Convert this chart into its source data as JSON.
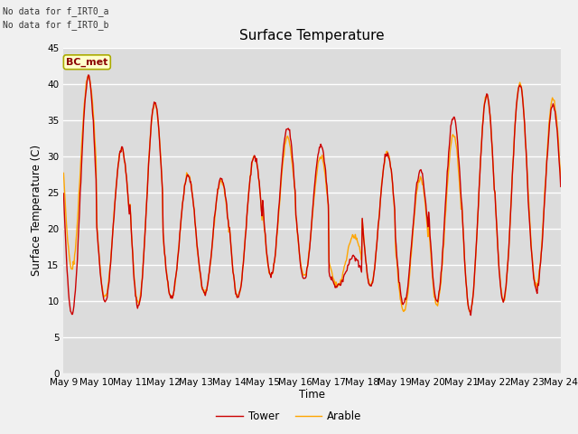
{
  "title": "Surface Temperature",
  "xlabel": "Time",
  "ylabel": "Surface Temperature (C)",
  "ylim": [
    0,
    45
  ],
  "yticks": [
    0,
    5,
    10,
    15,
    20,
    25,
    30,
    35,
    40,
    45
  ],
  "tower_color": "#cc0000",
  "arable_color": "#ffa500",
  "tower_label": "Tower",
  "arable_label": "Arable",
  "bc_met_label": "BC_met",
  "no_data_text1": "No data for f_IRT0_a",
  "no_data_text2": "No data for f_IRT0_b",
  "bg_color": "#dcdcdc",
  "fig_bg_color": "#f0f0f0",
  "title_fontsize": 11,
  "axis_label_fontsize": 8.5,
  "tick_fontsize": 7.5,
  "linewidth": 1.0,
  "tower_day_peaks": [
    41.0,
    31.0,
    37.5,
    27.5,
    27.0,
    30.0,
    34.0,
    31.5,
    16.0,
    30.5,
    28.0,
    35.5,
    38.5,
    40.0,
    37.0
  ],
  "tower_day_troughs": [
    8.0,
    10.0,
    9.0,
    10.5,
    11.0,
    10.5,
    13.5,
    13.0,
    12.0,
    12.0,
    9.5,
    10.0,
    8.5,
    10.0,
    11.5
  ],
  "arable_day_peaks": [
    41.0,
    31.0,
    37.5,
    27.5,
    26.5,
    30.0,
    32.5,
    30.0,
    19.0,
    30.5,
    27.0,
    33.0,
    38.5,
    40.0,
    38.0
  ],
  "arable_day_troughs": [
    14.5,
    10.5,
    9.5,
    10.5,
    11.0,
    10.5,
    13.5,
    13.5,
    12.0,
    12.0,
    8.5,
    9.5,
    8.5,
    10.0,
    12.0
  ],
  "x_tick_labels": [
    "May 9",
    "May 10",
    "May 11",
    "May 12",
    "May 13",
    "May 14",
    "May 15",
    "May 16",
    "May 17",
    "May 18",
    "May 19",
    "May 20",
    "May 21",
    "May 22",
    "May 23",
    "May 24"
  ]
}
